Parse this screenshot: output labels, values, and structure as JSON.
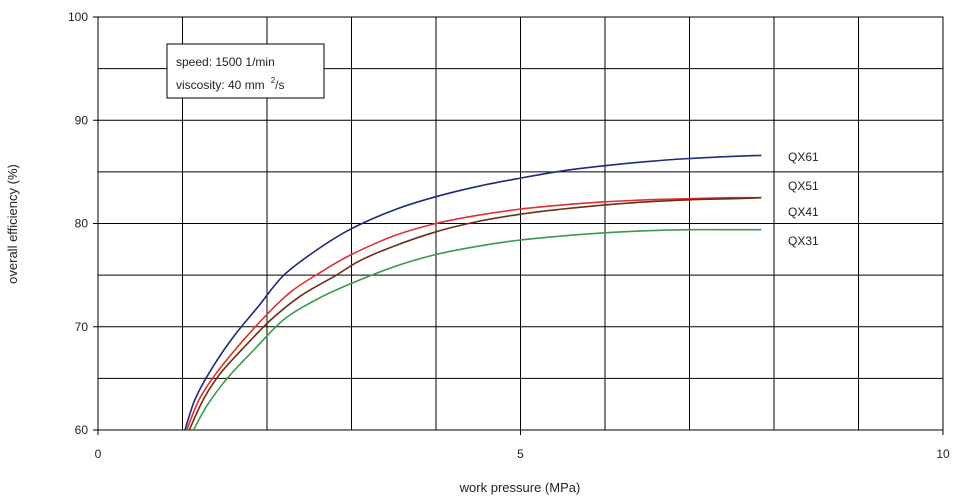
{
  "chart_data": {
    "type": "line",
    "xlabel": "work pressure (MPa)",
    "ylabel": "overall efficiency  (%)",
    "xlim": [
      0,
      10
    ],
    "ylim": [
      60,
      100
    ],
    "xticks": [
      0,
      5,
      10
    ],
    "yticks": [
      60,
      70,
      80,
      90,
      100
    ],
    "grid": true,
    "x_grid_step": 1,
    "y_grid_step": 5,
    "annotation": {
      "line1": "speed: 1500 1/min",
      "line2_prefix": "viscosity: 40 mm",
      "line2_sup": "2",
      "line2_suffix": "/s"
    },
    "series": [
      {
        "name": "QX61",
        "color": "#1f2a78",
        "points": [
          [
            1.03,
            60
          ],
          [
            1.15,
            63
          ],
          [
            1.35,
            66
          ],
          [
            1.6,
            69
          ],
          [
            1.9,
            72
          ],
          [
            2.2,
            75
          ],
          [
            2.6,
            77.5
          ],
          [
            3.0,
            79.5
          ],
          [
            3.5,
            81.3
          ],
          [
            4.0,
            82.6
          ],
          [
            4.5,
            83.6
          ],
          [
            5.0,
            84.4
          ],
          [
            5.5,
            85.1
          ],
          [
            6.0,
            85.6
          ],
          [
            6.5,
            86.0
          ],
          [
            7.0,
            86.3
          ],
          [
            7.5,
            86.5
          ],
          [
            7.85,
            86.6
          ]
        ]
      },
      {
        "name": "QX51",
        "color": "#e03030",
        "points": [
          [
            1.05,
            60
          ],
          [
            1.2,
            63
          ],
          [
            1.4,
            65.5
          ],
          [
            1.7,
            68.5
          ],
          [
            2.0,
            71.2
          ],
          [
            2.3,
            73.5
          ],
          [
            2.7,
            75.6
          ],
          [
            3.0,
            77.0
          ],
          [
            3.5,
            78.8
          ],
          [
            4.0,
            80.0
          ],
          [
            4.5,
            80.8
          ],
          [
            5.0,
            81.4
          ],
          [
            5.5,
            81.8
          ],
          [
            6.0,
            82.1
          ],
          [
            6.5,
            82.3
          ],
          [
            7.0,
            82.4
          ],
          [
            7.5,
            82.5
          ],
          [
            7.85,
            82.5
          ]
        ]
      },
      {
        "name": "QX41",
        "color": "#6b2e12",
        "points": [
          [
            1.08,
            60
          ],
          [
            1.25,
            63
          ],
          [
            1.45,
            65.5
          ],
          [
            1.75,
            68.2
          ],
          [
            2.05,
            70.7
          ],
          [
            2.4,
            73.0
          ],
          [
            2.8,
            74.9
          ],
          [
            3.1,
            76.4
          ],
          [
            3.5,
            77.8
          ],
          [
            4.0,
            79.2
          ],
          [
            4.5,
            80.2
          ],
          [
            5.0,
            80.9
          ],
          [
            5.5,
            81.4
          ],
          [
            6.0,
            81.8
          ],
          [
            6.5,
            82.1
          ],
          [
            7.0,
            82.3
          ],
          [
            7.5,
            82.4
          ],
          [
            7.85,
            82.5
          ]
        ]
      },
      {
        "name": "QX31",
        "color": "#3a9a48",
        "points": [
          [
            1.13,
            60
          ],
          [
            1.3,
            62.5
          ],
          [
            1.55,
            65.2
          ],
          [
            1.85,
            67.8
          ],
          [
            2.2,
            70.7
          ],
          [
            2.6,
            72.7
          ],
          [
            3.0,
            74.2
          ],
          [
            3.5,
            75.8
          ],
          [
            4.0,
            77.0
          ],
          [
            4.5,
            77.8
          ],
          [
            5.0,
            78.4
          ],
          [
            5.5,
            78.8
          ],
          [
            6.0,
            79.1
          ],
          [
            6.5,
            79.3
          ],
          [
            7.0,
            79.4
          ],
          [
            7.5,
            79.4
          ],
          [
            7.85,
            79.4
          ]
        ]
      }
    ],
    "legend_labels": [
      "QX61",
      "QX51",
      "QX41",
      "QX31"
    ]
  }
}
